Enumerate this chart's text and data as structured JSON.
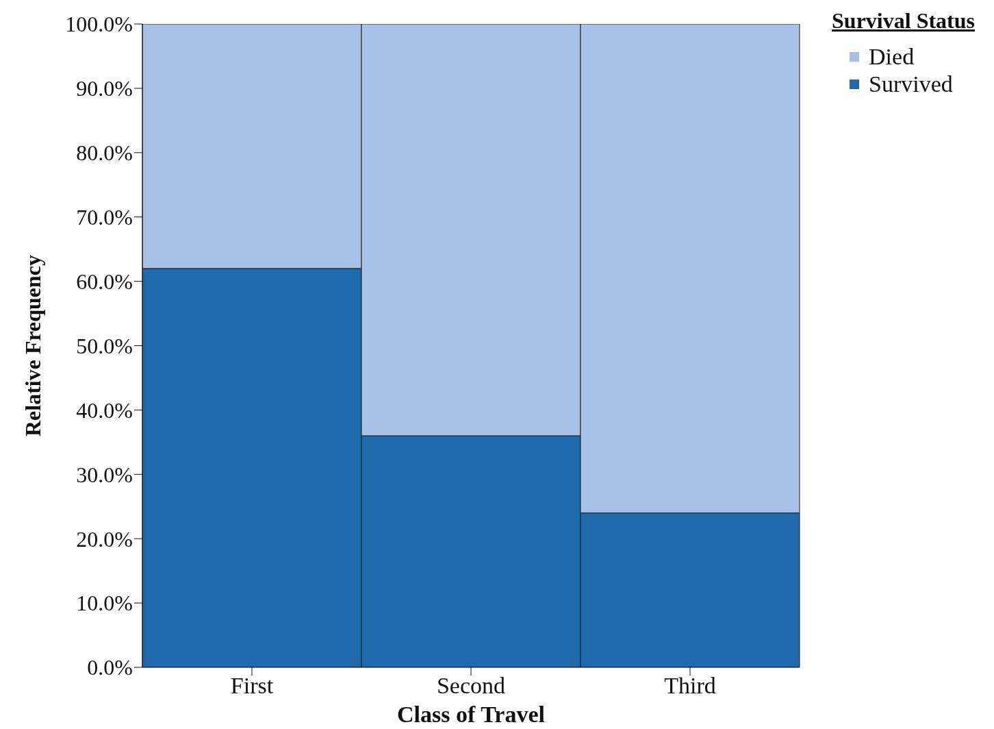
{
  "chart_data": {
    "type": "bar",
    "stacked": true,
    "xlabel": "Class of Travel",
    "ylabel": "Relative Frequency",
    "legend_title": "Survival Status",
    "legend": "top right",
    "categories": [
      "First",
      "Second",
      "Third"
    ],
    "series": [
      {
        "name": "Survived",
        "color": "#1f6aad",
        "values": [
          62,
          36,
          24
        ]
      },
      {
        "name": "Died",
        "color": "#a6c1e5",
        "values": [
          38,
          64,
          76
        ]
      }
    ],
    "ylim": [
      0,
      100
    ],
    "yticks": [
      {
        "value": 0,
        "label": "0.0%"
      },
      {
        "value": 10,
        "label": "10.0%"
      },
      {
        "value": 20,
        "label": "20.0%"
      },
      {
        "value": 30,
        "label": "30.0%"
      },
      {
        "value": 40,
        "label": "40.0%"
      },
      {
        "value": 50,
        "label": "50.0%"
      },
      {
        "value": 60,
        "label": "60.0%"
      },
      {
        "value": 70,
        "label": "70.0%"
      },
      {
        "value": 80,
        "label": "80.0%"
      },
      {
        "value": 90,
        "label": "90.0%"
      },
      {
        "value": 100,
        "label": "100.0%"
      }
    ]
  }
}
